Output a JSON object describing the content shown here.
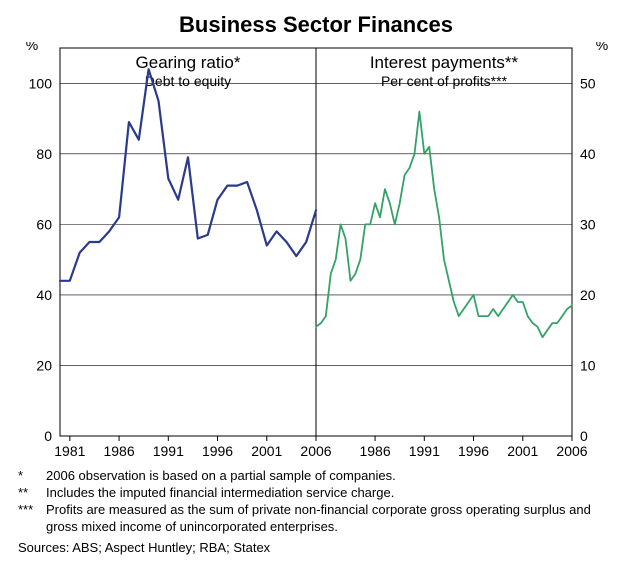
{
  "title": "Business Sector Finances",
  "panels": {
    "left": {
      "heading": "Gearing ratio*",
      "subheading": "Debt to equity",
      "y_label": "%",
      "ylim": [
        0,
        110
      ],
      "yticks": [
        0,
        20,
        40,
        60,
        80,
        100
      ],
      "xlim": [
        1980,
        2006
      ],
      "xticks": [
        1981,
        1986,
        1991,
        1996,
        2001,
        2006
      ],
      "line_color": "#2b3a8c",
      "line_width": 2.2,
      "series": [
        [
          1980,
          44
        ],
        [
          1981,
          44
        ],
        [
          1982,
          52
        ],
        [
          1983,
          55
        ],
        [
          1984,
          55
        ],
        [
          1985,
          58
        ],
        [
          1986,
          62
        ],
        [
          1987,
          89
        ],
        [
          1988,
          84
        ],
        [
          1989,
          104
        ],
        [
          1990,
          95
        ],
        [
          1991,
          73
        ],
        [
          1992,
          67
        ],
        [
          1993,
          79
        ],
        [
          1994,
          56
        ],
        [
          1995,
          57
        ],
        [
          1996,
          67
        ],
        [
          1997,
          71
        ],
        [
          1998,
          71
        ],
        [
          1999,
          72
        ],
        [
          2000,
          64
        ],
        [
          2001,
          54
        ],
        [
          2002,
          58
        ],
        [
          2003,
          55
        ],
        [
          2004,
          51
        ],
        [
          2005,
          55
        ],
        [
          2006,
          64
        ]
      ]
    },
    "right": {
      "heading": "Interest payments**",
      "subheading": "Per cent of profits***",
      "y_label": "%",
      "ylim": [
        0,
        55
      ],
      "yticks": [
        0,
        10,
        20,
        30,
        40,
        50
      ],
      "xlim": [
        1980,
        2006
      ],
      "xticks": [
        1986,
        1991,
        1996,
        2001,
        2006
      ],
      "line_color": "#33a268",
      "line_width": 1.8,
      "series": [
        [
          1980.0,
          15.5
        ],
        [
          1980.5,
          16
        ],
        [
          1981.0,
          17
        ],
        [
          1981.5,
          23
        ],
        [
          1982.0,
          25
        ],
        [
          1982.5,
          30
        ],
        [
          1983.0,
          28
        ],
        [
          1983.5,
          22
        ],
        [
          1984.0,
          23
        ],
        [
          1984.5,
          25
        ],
        [
          1985.0,
          30
        ],
        [
          1985.5,
          30
        ],
        [
          1986.0,
          33
        ],
        [
          1986.5,
          31
        ],
        [
          1987.0,
          35
        ],
        [
          1987.5,
          33
        ],
        [
          1988.0,
          30
        ],
        [
          1988.5,
          33
        ],
        [
          1989.0,
          37
        ],
        [
          1989.5,
          38
        ],
        [
          1990.0,
          40
        ],
        [
          1990.5,
          46
        ],
        [
          1991.0,
          40
        ],
        [
          1991.5,
          41
        ],
        [
          1992.0,
          35
        ],
        [
          1992.5,
          31
        ],
        [
          1993.0,
          25
        ],
        [
          1993.5,
          22
        ],
        [
          1994.0,
          19
        ],
        [
          1994.5,
          17
        ],
        [
          1995.0,
          18
        ],
        [
          1995.5,
          19
        ],
        [
          1996.0,
          20
        ],
        [
          1996.5,
          17
        ],
        [
          1997.0,
          17
        ],
        [
          1997.5,
          17
        ],
        [
          1998.0,
          18
        ],
        [
          1998.5,
          17
        ],
        [
          1999.0,
          18
        ],
        [
          1999.5,
          19
        ],
        [
          2000.0,
          20
        ],
        [
          2000.5,
          19
        ],
        [
          2001.0,
          19
        ],
        [
          2001.5,
          17
        ],
        [
          2002.0,
          16
        ],
        [
          2002.5,
          15.5
        ],
        [
          2003.0,
          14
        ],
        [
          2003.5,
          15
        ],
        [
          2004.0,
          16
        ],
        [
          2004.5,
          16
        ],
        [
          2005.0,
          17
        ],
        [
          2005.5,
          18
        ],
        [
          2006.0,
          18.5
        ]
      ]
    }
  },
  "chart_style": {
    "background_color": "#ffffff",
    "axis_color": "#000000",
    "grid_color": "#000000",
    "grid_width": 0.6,
    "heading_fontsize": 17,
    "subheading_fontsize": 14,
    "tick_fontsize": 14,
    "axis_label_fontsize": 14
  },
  "footnotes": [
    {
      "sym": "*",
      "text": "2006 observation is based on a partial sample of companies."
    },
    {
      "sym": "**",
      "text": "Includes the imputed financial intermediation service charge."
    },
    {
      "sym": "***",
      "text": "Profits are measured as the sum of private non-financial corporate gross operating surplus and gross mixed income of unincorporated enterprises."
    }
  ],
  "sources": "Sources: ABS; Aspect Huntley; RBA; Statex"
}
